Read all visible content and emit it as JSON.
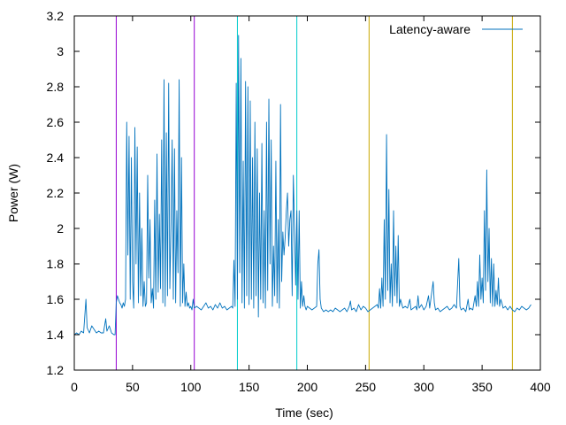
{
  "chart_data": {
    "type": "line",
    "title": "",
    "xlabel": "Time (sec)",
    "ylabel": "Power (W)",
    "xlim": [
      0,
      400
    ],
    "ylim": [
      1.2,
      3.2
    ],
    "x_ticks": [
      "0",
      "50",
      "100",
      "150",
      "200",
      "250",
      "300",
      "350",
      "400"
    ],
    "y_ticks": [
      "1.2",
      "1.4",
      "1.6",
      "1.8",
      "2",
      "2.2",
      "2.4",
      "2.6",
      "2.8",
      "3",
      "3.2"
    ],
    "grid": false,
    "legend_position": "top-right",
    "series": [
      {
        "name": "Latency-aware",
        "color": "#0072bd",
        "points": [
          [
            0,
            1.4
          ],
          [
            2,
            1.41
          ],
          [
            4,
            1.4
          ],
          [
            6,
            1.42
          ],
          [
            8,
            1.41
          ],
          [
            10,
            1.6
          ],
          [
            11,
            1.44
          ],
          [
            13,
            1.41
          ],
          [
            15,
            1.45
          ],
          [
            17,
            1.43
          ],
          [
            19,
            1.41
          ],
          [
            21,
            1.42
          ],
          [
            23,
            1.41
          ],
          [
            25,
            1.41
          ],
          [
            27,
            1.49
          ],
          [
            28,
            1.42
          ],
          [
            30,
            1.45
          ],
          [
            32,
            1.41
          ],
          [
            34,
            1.4
          ],
          [
            35,
            1.4
          ],
          [
            36,
            1.58
          ],
          [
            37,
            1.62
          ],
          [
            38,
            1.6
          ],
          [
            39,
            1.58
          ],
          [
            40,
            1.57
          ],
          [
            41,
            1.55
          ],
          [
            42,
            1.58
          ],
          [
            43,
            1.56
          ],
          [
            44,
            1.6
          ],
          [
            45,
            2.6
          ],
          [
            46,
            1.85
          ],
          [
            47,
            2.52
          ],
          [
            48,
            1.6
          ],
          [
            49,
            2.4
          ],
          [
            50,
            1.7
          ],
          [
            51,
            1.55
          ],
          [
            52,
            2.57
          ],
          [
            53,
            1.8
          ],
          [
            54,
            2.46
          ],
          [
            55,
            1.58
          ],
          [
            56,
            2.2
          ],
          [
            57,
            1.62
          ],
          [
            58,
            2.0
          ],
          [
            59,
            1.56
          ],
          [
            60,
            1.7
          ],
          [
            61,
            1.56
          ],
          [
            62,
            1.58
          ],
          [
            63,
            2.3
          ],
          [
            64,
            1.72
          ],
          [
            65,
            2.05
          ],
          [
            66,
            1.58
          ],
          [
            67,
            1.66
          ],
          [
            68,
            1.55
          ],
          [
            69,
            2.16
          ],
          [
            70,
            1.6
          ],
          [
            71,
            2.42
          ],
          [
            72,
            1.64
          ],
          [
            73,
            2.08
          ],
          [
            74,
            1.66
          ],
          [
            75,
            2.5
          ],
          [
            76,
            1.58
          ],
          [
            77,
            2.84
          ],
          [
            78,
            1.56
          ],
          [
            79,
            2.54
          ],
          [
            80,
            1.62
          ],
          [
            81,
            2.82
          ],
          [
            82,
            1.66
          ],
          [
            83,
            2.0
          ],
          [
            84,
            2.5
          ],
          [
            85,
            1.6
          ],
          [
            86,
            2.45
          ],
          [
            87,
            1.58
          ],
          [
            88,
            2.1
          ],
          [
            89,
            1.75
          ],
          [
            90,
            2.84
          ],
          [
            91,
            1.56
          ],
          [
            92,
            2.4
          ],
          [
            93,
            1.58
          ],
          [
            94,
            1.8
          ],
          [
            95,
            1.56
          ],
          [
            96,
            1.64
          ],
          [
            97,
            1.56
          ],
          [
            98,
            1.58
          ],
          [
            99,
            1.55
          ],
          [
            100,
            1.56
          ],
          [
            101,
            1.54
          ],
          [
            102,
            1.6
          ],
          [
            103,
            1.55
          ],
          [
            105,
            1.56
          ],
          [
            107,
            1.55
          ],
          [
            109,
            1.54
          ],
          [
            111,
            1.56
          ],
          [
            113,
            1.58
          ],
          [
            115,
            1.55
          ],
          [
            117,
            1.56
          ],
          [
            119,
            1.54
          ],
          [
            121,
            1.57
          ],
          [
            123,
            1.55
          ],
          [
            125,
            1.58
          ],
          [
            127,
            1.55
          ],
          [
            129,
            1.56
          ],
          [
            131,
            1.54
          ],
          [
            133,
            1.55
          ],
          [
            135,
            1.56
          ],
          [
            136,
            1.55
          ],
          [
            137,
            1.82
          ],
          [
            138,
            1.56
          ],
          [
            139,
            2.82
          ],
          [
            140,
            1.6
          ],
          [
            141,
            3.09
          ],
          [
            142,
            1.75
          ],
          [
            143,
            2.96
          ],
          [
            144,
            1.58
          ],
          [
            145,
            2.38
          ],
          [
            146,
            1.55
          ],
          [
            147,
            2.83
          ],
          [
            148,
            1.62
          ],
          [
            149,
            2.8
          ],
          [
            150,
            1.57
          ],
          [
            151,
            2.72
          ],
          [
            152,
            1.6
          ],
          [
            153,
            2.4
          ],
          [
            154,
            1.55
          ],
          [
            155,
            2.6
          ],
          [
            156,
            1.62
          ],
          [
            157,
            2.45
          ],
          [
            158,
            1.5
          ],
          [
            159,
            2.2
          ],
          [
            160,
            1.6
          ],
          [
            161,
            2.48
          ],
          [
            162,
            1.58
          ],
          [
            163,
            2.1
          ],
          [
            164,
            1.55
          ],
          [
            165,
            2.6
          ],
          [
            166,
            1.65
          ],
          [
            167,
            2.73
          ],
          [
            168,
            1.8
          ],
          [
            169,
            2.5
          ],
          [
            170,
            1.56
          ],
          [
            171,
            1.9
          ],
          [
            172,
            1.62
          ],
          [
            173,
            2.38
          ],
          [
            174,
            1.58
          ],
          [
            175,
            2.05
          ],
          [
            176,
            1.55
          ],
          [
            177,
            2.7
          ],
          [
            178,
            1.7
          ],
          [
            179,
            1.98
          ],
          [
            180,
            1.85
          ],
          [
            181,
            1.95
          ],
          [
            182,
            2.1
          ],
          [
            183,
            2.2
          ],
          [
            184,
            1.9
          ],
          [
            185,
            2.05
          ],
          [
            186,
            2.1
          ],
          [
            187,
            1.62
          ],
          [
            188,
            2.3
          ],
          [
            189,
            2.0
          ],
          [
            190,
            1.68
          ],
          [
            191,
            2.1
          ],
          [
            192,
            1.6
          ],
          [
            193,
            2.1
          ],
          [
            194,
            1.55
          ],
          [
            195,
            1.7
          ],
          [
            196,
            1.56
          ],
          [
            197,
            1.62
          ],
          [
            198,
            1.56
          ],
          [
            199,
            1.54
          ],
          [
            200,
            1.56
          ],
          [
            202,
            1.55
          ],
          [
            204,
            1.54
          ],
          [
            206,
            1.55
          ],
          [
            208,
            1.56
          ],
          [
            209,
            1.8
          ],
          [
            210,
            1.88
          ],
          [
            211,
            1.6
          ],
          [
            212,
            1.55
          ],
          [
            214,
            1.53
          ],
          [
            216,
            1.54
          ],
          [
            218,
            1.53
          ],
          [
            220,
            1.54
          ],
          [
            222,
            1.53
          ],
          [
            224,
            1.55
          ],
          [
            226,
            1.54
          ],
          [
            228,
            1.53
          ],
          [
            230,
            1.54
          ],
          [
            232,
            1.55
          ],
          [
            234,
            1.53
          ],
          [
            236,
            1.56
          ],
          [
            237,
            1.59
          ],
          [
            238,
            1.54
          ],
          [
            240,
            1.55
          ],
          [
            242,
            1.53
          ],
          [
            244,
            1.57
          ],
          [
            246,
            1.54
          ],
          [
            248,
            1.56
          ],
          [
            250,
            1.55
          ],
          [
            252,
            1.53
          ],
          [
            254,
            1.54
          ],
          [
            256,
            1.55
          ],
          [
            258,
            1.56
          ],
          [
            260,
            1.57
          ],
          [
            261,
            1.55
          ],
          [
            262,
            1.66
          ],
          [
            263,
            1.55
          ],
          [
            264,
            1.72
          ],
          [
            265,
            1.56
          ],
          [
            266,
            2.05
          ],
          [
            267,
            1.6
          ],
          [
            268,
            2.53
          ],
          [
            269,
            1.65
          ],
          [
            270,
            2.22
          ],
          [
            271,
            1.58
          ],
          [
            272,
            1.8
          ],
          [
            273,
            1.56
          ],
          [
            274,
            2.1
          ],
          [
            275,
            1.62
          ],
          [
            276,
            1.9
          ],
          [
            277,
            1.58
          ],
          [
            278,
            1.96
          ],
          [
            279,
            1.56
          ],
          [
            280,
            1.6
          ],
          [
            282,
            1.55
          ],
          [
            284,
            1.56
          ],
          [
            286,
            1.55
          ],
          [
            288,
            1.6
          ],
          [
            289,
            1.54
          ],
          [
            291,
            1.55
          ],
          [
            293,
            1.56
          ],
          [
            294,
            1.54
          ],
          [
            295,
            1.62
          ],
          [
            296,
            1.55
          ],
          [
            298,
            1.57
          ],
          [
            300,
            1.54
          ],
          [
            302,
            1.56
          ],
          [
            304,
            1.62
          ],
          [
            305,
            1.55
          ],
          [
            306,
            1.6
          ],
          [
            308,
            1.7
          ],
          [
            309,
            1.58
          ],
          [
            310,
            1.54
          ],
          [
            312,
            1.55
          ],
          [
            314,
            1.53
          ],
          [
            316,
            1.54
          ],
          [
            318,
            1.55
          ],
          [
            320,
            1.56
          ],
          [
            322,
            1.54
          ],
          [
            324,
            1.55
          ],
          [
            326,
            1.57
          ],
          [
            328,
            1.55
          ],
          [
            330,
            1.83
          ],
          [
            331,
            1.56
          ],
          [
            332,
            1.54
          ],
          [
            334,
            1.55
          ],
          [
            336,
            1.53
          ],
          [
            338,
            1.6
          ],
          [
            339,
            1.54
          ],
          [
            340,
            1.55
          ],
          [
            342,
            1.54
          ],
          [
            344,
            1.62
          ],
          [
            345,
            1.56
          ],
          [
            346,
            1.7
          ],
          [
            347,
            1.56
          ],
          [
            348,
            1.85
          ],
          [
            349,
            1.6
          ],
          [
            350,
            1.72
          ],
          [
            351,
            1.58
          ],
          [
            352,
            2.1
          ],
          [
            353,
            1.65
          ],
          [
            354,
            2.33
          ],
          [
            355,
            1.7
          ],
          [
            356,
            2.0
          ],
          [
            357,
            1.58
          ],
          [
            358,
            1.83
          ],
          [
            359,
            1.56
          ],
          [
            360,
            1.8
          ],
          [
            361,
            1.56
          ],
          [
            362,
            1.65
          ],
          [
            363,
            1.57
          ],
          [
            364,
            1.72
          ],
          [
            365,
            1.56
          ],
          [
            366,
            1.6
          ],
          [
            367,
            1.58
          ],
          [
            368,
            1.55
          ],
          [
            370,
            1.56
          ],
          [
            372,
            1.54
          ],
          [
            374,
            1.56
          ],
          [
            376,
            1.54
          ],
          [
            378,
            1.53
          ],
          [
            380,
            1.55
          ],
          [
            382,
            1.54
          ],
          [
            384,
            1.56
          ],
          [
            386,
            1.55
          ],
          [
            388,
            1.54
          ],
          [
            390,
            1.55
          ],
          [
            392,
            1.57
          ]
        ]
      }
    ],
    "vertical_markers": [
      {
        "x": 36,
        "color": "#9400d3"
      },
      {
        "x": 103,
        "color": "#9400d3"
      },
      {
        "x": 140,
        "color": "#00cccc"
      },
      {
        "x": 191,
        "color": "#00cccc"
      },
      {
        "x": 253,
        "color": "#c8a800"
      },
      {
        "x": 376,
        "color": "#c8a800"
      }
    ]
  }
}
